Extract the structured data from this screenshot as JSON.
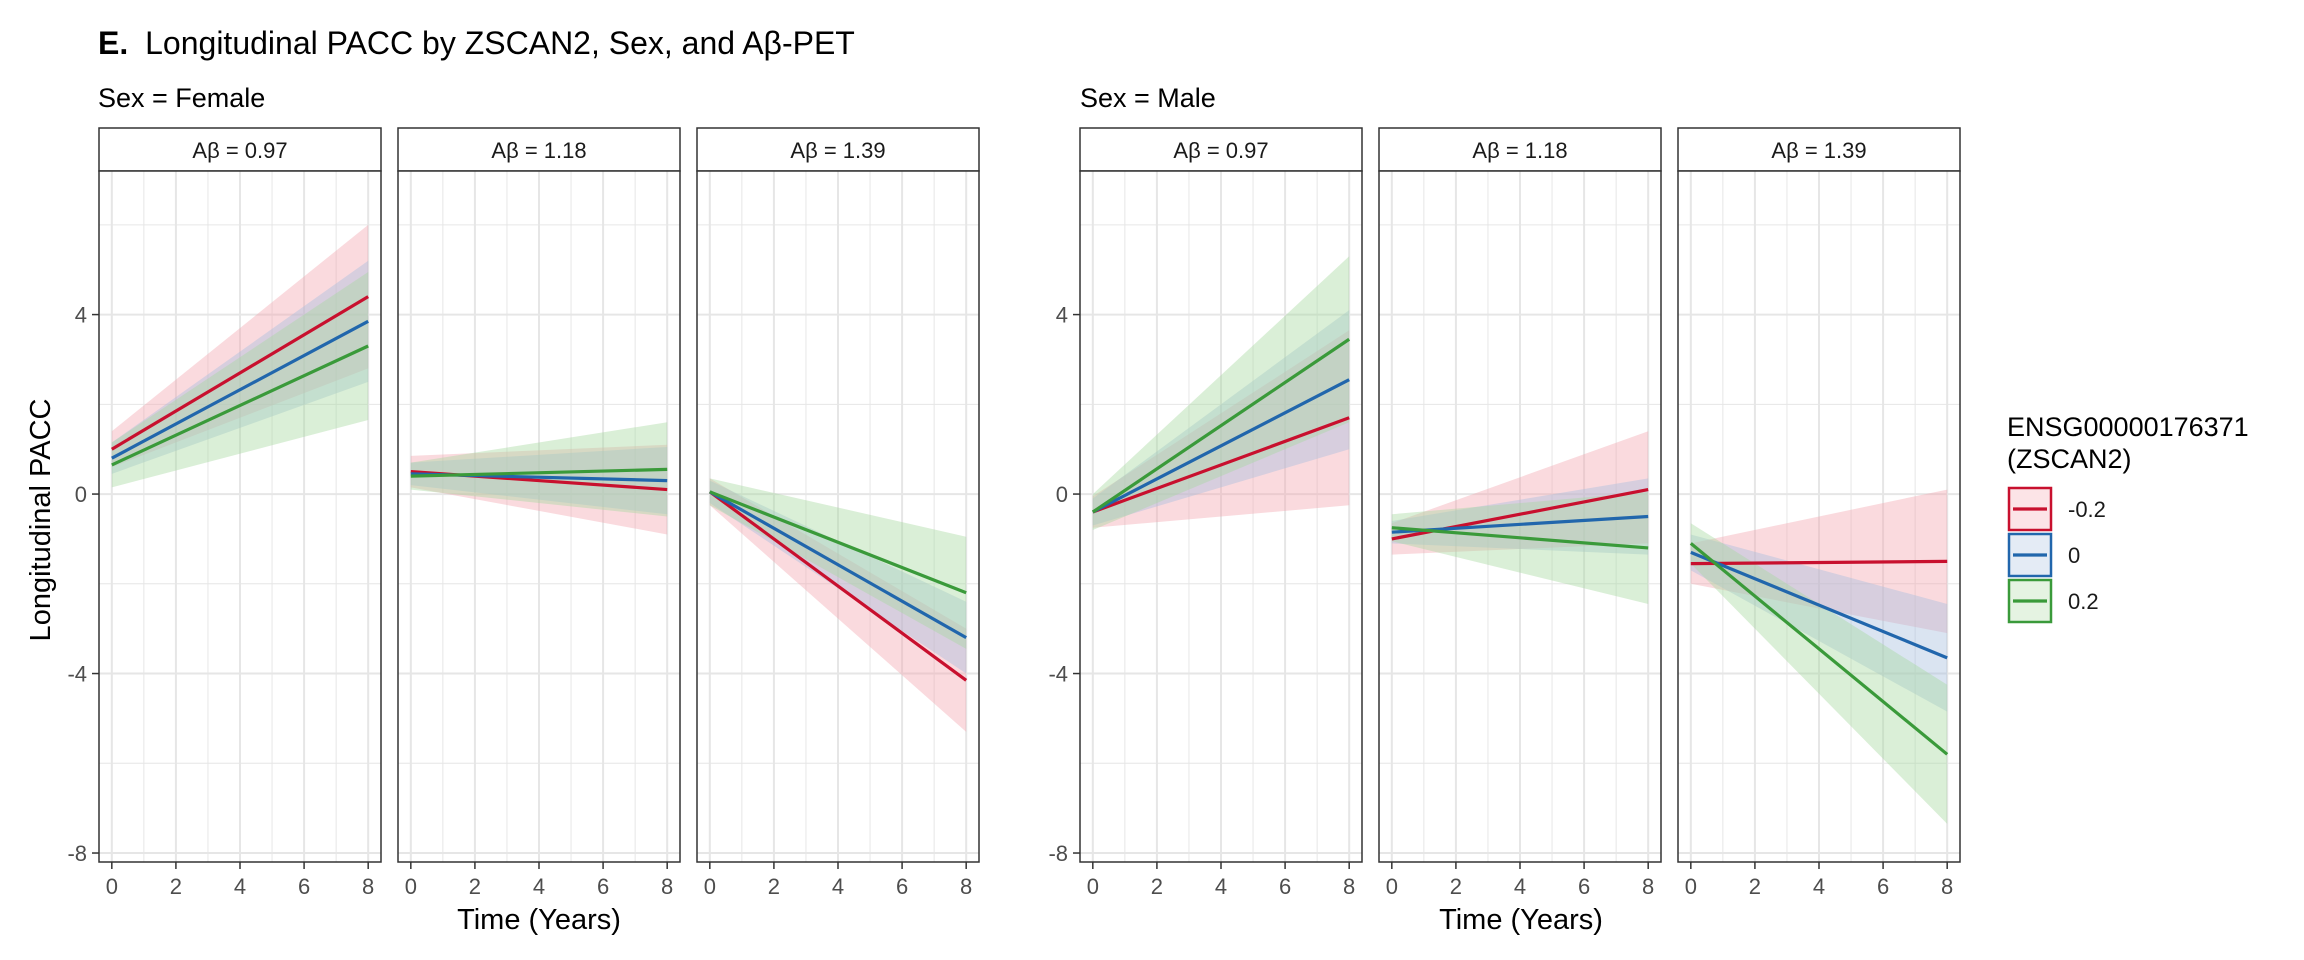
{
  "figure": {
    "panel_letter": "E.",
    "title": "Longitudinal PACC by ZSCAN2, Sex, and Aβ-PET",
    "groups": [
      {
        "label": "Sex = Female",
        "key": "female"
      },
      {
        "label": "Sex = Male",
        "key": "male"
      }
    ],
    "ylabel": "Longitudinal PACC",
    "xlabel": "Time (Years)",
    "legend": {
      "title_line1": "ENSG00000176371",
      "title_line2": "(ZSCAN2)",
      "placement": "right"
    }
  },
  "colors": {
    "-0.2": "#C8102E",
    "0": "#2166AC",
    "0.2": "#3A9A3A",
    "ribbon_-0.2": "#F4A6B0",
    "ribbon_0": "#A6BEDD",
    "ribbon_0.2": "#A8D8A0",
    "grid": "#E6E6E6",
    "strip_fill": "#FFFFFF",
    "axis_text": "#4D4D4D"
  },
  "chart_data": {
    "type": "line",
    "x_ticks": [
      0,
      2,
      4,
      6,
      8
    ],
    "y_ticks": [
      -8,
      -4,
      0,
      4
    ],
    "xlim": [
      -0.4,
      8.4
    ],
    "ylim": [
      -8.2,
      7.2
    ],
    "grid": true,
    "series_names": [
      "-0.2",
      "0",
      "0.2"
    ],
    "facets": [
      {
        "group": "female",
        "strip": "Aβ = 0.97",
        "series": [
          {
            "name": "-0.2",
            "x": [
              0,
              8
            ],
            "y": [
              1.0,
              4.4
            ],
            "lo": [
              0.6,
              2.8
            ],
            "hi": [
              1.4,
              6.0
            ]
          },
          {
            "name": "0",
            "x": [
              0,
              8
            ],
            "y": [
              0.8,
              3.85
            ],
            "lo": [
              0.45,
              2.5
            ],
            "hi": [
              1.15,
              5.2
            ]
          },
          {
            "name": "0.2",
            "x": [
              0,
              8
            ],
            "y": [
              0.65,
              3.3
            ],
            "lo": [
              0.15,
              1.65
            ],
            "hi": [
              1.15,
              4.95
            ]
          }
        ]
      },
      {
        "group": "female",
        "strip": "Aβ = 1.18",
        "series": [
          {
            "name": "-0.2",
            "x": [
              0,
              8
            ],
            "y": [
              0.5,
              0.1
            ],
            "lo": [
              0.15,
              -0.9
            ],
            "hi": [
              0.85,
              1.1
            ]
          },
          {
            "name": "0",
            "x": [
              0,
              8
            ],
            "y": [
              0.45,
              0.3
            ],
            "lo": [
              0.2,
              -0.45
            ],
            "hi": [
              0.7,
              1.05
            ]
          },
          {
            "name": "0.2",
            "x": [
              0,
              8
            ],
            "y": [
              0.4,
              0.55
            ],
            "lo": [
              0.1,
              -0.5
            ],
            "hi": [
              0.7,
              1.6
            ]
          }
        ]
      },
      {
        "group": "female",
        "strip": "Aβ = 1.39",
        "series": [
          {
            "name": "-0.2",
            "x": [
              0,
              8
            ],
            "y": [
              0.05,
              -4.15
            ],
            "lo": [
              -0.25,
              -5.3
            ],
            "hi": [
              0.35,
              -3.0
            ]
          },
          {
            "name": "0",
            "x": [
              0,
              8
            ],
            "y": [
              0.05,
              -3.2
            ],
            "lo": [
              -0.2,
              -4.0
            ],
            "hi": [
              0.3,
              -2.4
            ]
          },
          {
            "name": "0.2",
            "x": [
              0,
              8
            ],
            "y": [
              0.05,
              -2.2
            ],
            "lo": [
              -0.25,
              -3.45
            ],
            "hi": [
              0.35,
              -0.95
            ]
          }
        ]
      },
      {
        "group": "male",
        "strip": "Aβ = 0.97",
        "series": [
          {
            "name": "-0.2",
            "x": [
              0,
              8
            ],
            "y": [
              -0.4,
              1.7
            ],
            "lo": [
              -0.75,
              -0.25
            ],
            "hi": [
              -0.05,
              3.65
            ]
          },
          {
            "name": "0",
            "x": [
              0,
              8
            ],
            "y": [
              -0.4,
              2.55
            ],
            "lo": [
              -0.7,
              1.0
            ],
            "hi": [
              -0.1,
              4.1
            ]
          },
          {
            "name": "0.2",
            "x": [
              0,
              8
            ],
            "y": [
              -0.4,
              3.45
            ],
            "lo": [
              -0.8,
              1.6
            ],
            "hi": [
              0.0,
              5.3
            ]
          }
        ]
      },
      {
        "group": "male",
        "strip": "Aβ = 1.18",
        "series": [
          {
            "name": "-0.2",
            "x": [
              0,
              8
            ],
            "y": [
              -1.0,
              0.1
            ],
            "lo": [
              -1.35,
              -1.1
            ],
            "hi": [
              -0.65,
              1.4
            ]
          },
          {
            "name": "0",
            "x": [
              0,
              8
            ],
            "y": [
              -0.85,
              -0.5
            ],
            "lo": [
              -1.1,
              -1.35
            ],
            "hi": [
              -0.6,
              0.35
            ]
          },
          {
            "name": "0.2",
            "x": [
              0,
              8
            ],
            "y": [
              -0.75,
              -1.2
            ],
            "lo": [
              -1.05,
              -2.45
            ],
            "hi": [
              -0.45,
              0.05
            ]
          }
        ]
      },
      {
        "group": "male",
        "strip": "Aβ = 1.39",
        "series": [
          {
            "name": "-0.2",
            "x": [
              0,
              8
            ],
            "y": [
              -1.55,
              -1.5
            ],
            "lo": [
              -2.0,
              -3.1
            ],
            "hi": [
              -1.1,
              0.1
            ]
          },
          {
            "name": "0",
            "x": [
              0,
              8
            ],
            "y": [
              -1.3,
              -3.65
            ],
            "lo": [
              -1.7,
              -4.85
            ],
            "hi": [
              -0.9,
              -2.45
            ]
          },
          {
            "name": "0.2",
            "x": [
              0,
              8
            ],
            "y": [
              -1.1,
              -5.8
            ],
            "lo": [
              -1.55,
              -7.35
            ],
            "hi": [
              -0.65,
              -4.25
            ]
          }
        ]
      }
    ]
  }
}
